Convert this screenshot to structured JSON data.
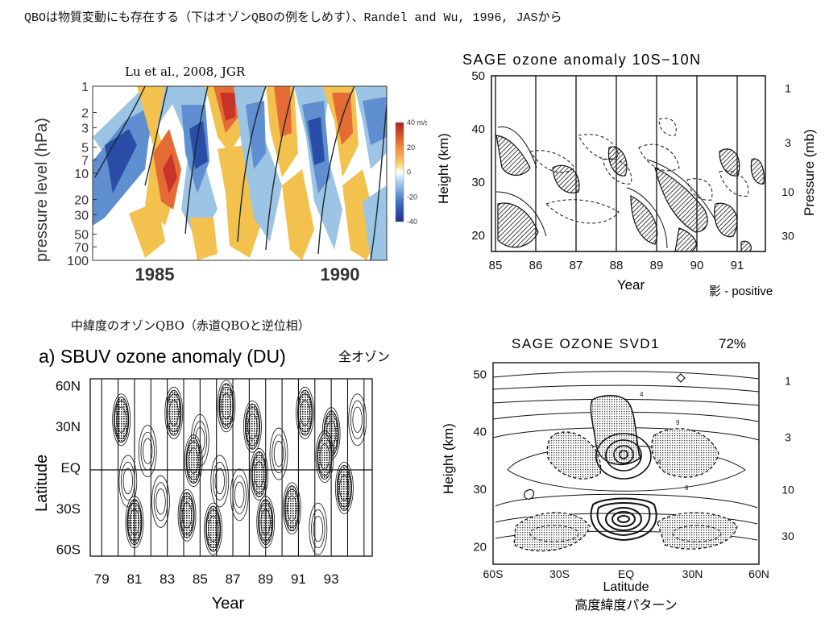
{
  "slide": {
    "title": "QBOは物質変動にも存在する（下はオゾンQBOの例をしめす）、Randel and Wu, 1996, JASから"
  },
  "chart_data": [
    {
      "id": "wind_qbo",
      "type": "heatmap",
      "title": "Lu et al., 2008, JGR",
      "ylabel": "pressure level  (hPa)",
      "xlabel": "",
      "x_tick_labels": [
        "1985",
        "1990"
      ],
      "y_tick_labels": [
        "1",
        "2",
        "3",
        "5",
        "7",
        "10",
        "20",
        "30",
        "50",
        "70",
        "100"
      ],
      "y_scale": "log",
      "colorbar": {
        "unit": "m/s",
        "ticks": [
          "40 m/s",
          "20",
          "0",
          "-20",
          "-40"
        ],
        "range": [
          -40,
          40
        ]
      },
      "colors": {
        "east": "#2a4ea8",
        "west": "#c9342a",
        "mid_pos": "#f2c14e",
        "mid_neg": "#9cc4e4"
      }
    },
    {
      "id": "sage_ozone_anomaly",
      "type": "heatmap",
      "title": "SAGE ozone anomaly 10S−10N",
      "xlabel": "Year",
      "ylabel": "Height (km)",
      "y2label": "Pressure (mb)",
      "x_tick_labels": [
        "85",
        "86",
        "87",
        "88",
        "89",
        "90",
        "91"
      ],
      "y_tick_labels": [
        "50",
        "40",
        "30",
        "20"
      ],
      "y2_tick_labels": [
        "1",
        "3",
        "10",
        "30"
      ],
      "note": "影 - positive"
    },
    {
      "id": "sbuv_ozone_anomaly",
      "type": "heatmap",
      "title": "a) SBUV ozone anomaly (DU)",
      "title_suffix": "全オゾン",
      "caption": "中緯度のオゾンQBO（赤道QBOと逆位相）",
      "xlabel": "Year",
      "ylabel": "Latitude",
      "x_tick_labels": [
        "79",
        "81",
        "83",
        "85",
        "87",
        "89",
        "91",
        "93"
      ],
      "y_tick_labels": [
        "60N",
        "30N",
        "EQ",
        "30S",
        "60S"
      ]
    },
    {
      "id": "sage_ozone_svd1",
      "type": "heatmap",
      "title": "SAGE OZONE SVD1",
      "variance": "72%",
      "xlabel": "Latitude",
      "ylabel": "Height (km)",
      "x_tick_labels": [
        "60S",
        "30S",
        "EQ",
        "30N",
        "60N"
      ],
      "y_tick_labels": [
        "50",
        "40",
        "30",
        "20"
      ],
      "y2_tick_labels": [
        "1",
        "3",
        "10",
        "30"
      ],
      "caption": "高度緯度パターン",
      "contour_labels": [
        "4",
        "9",
        "4",
        "8"
      ]
    }
  ]
}
